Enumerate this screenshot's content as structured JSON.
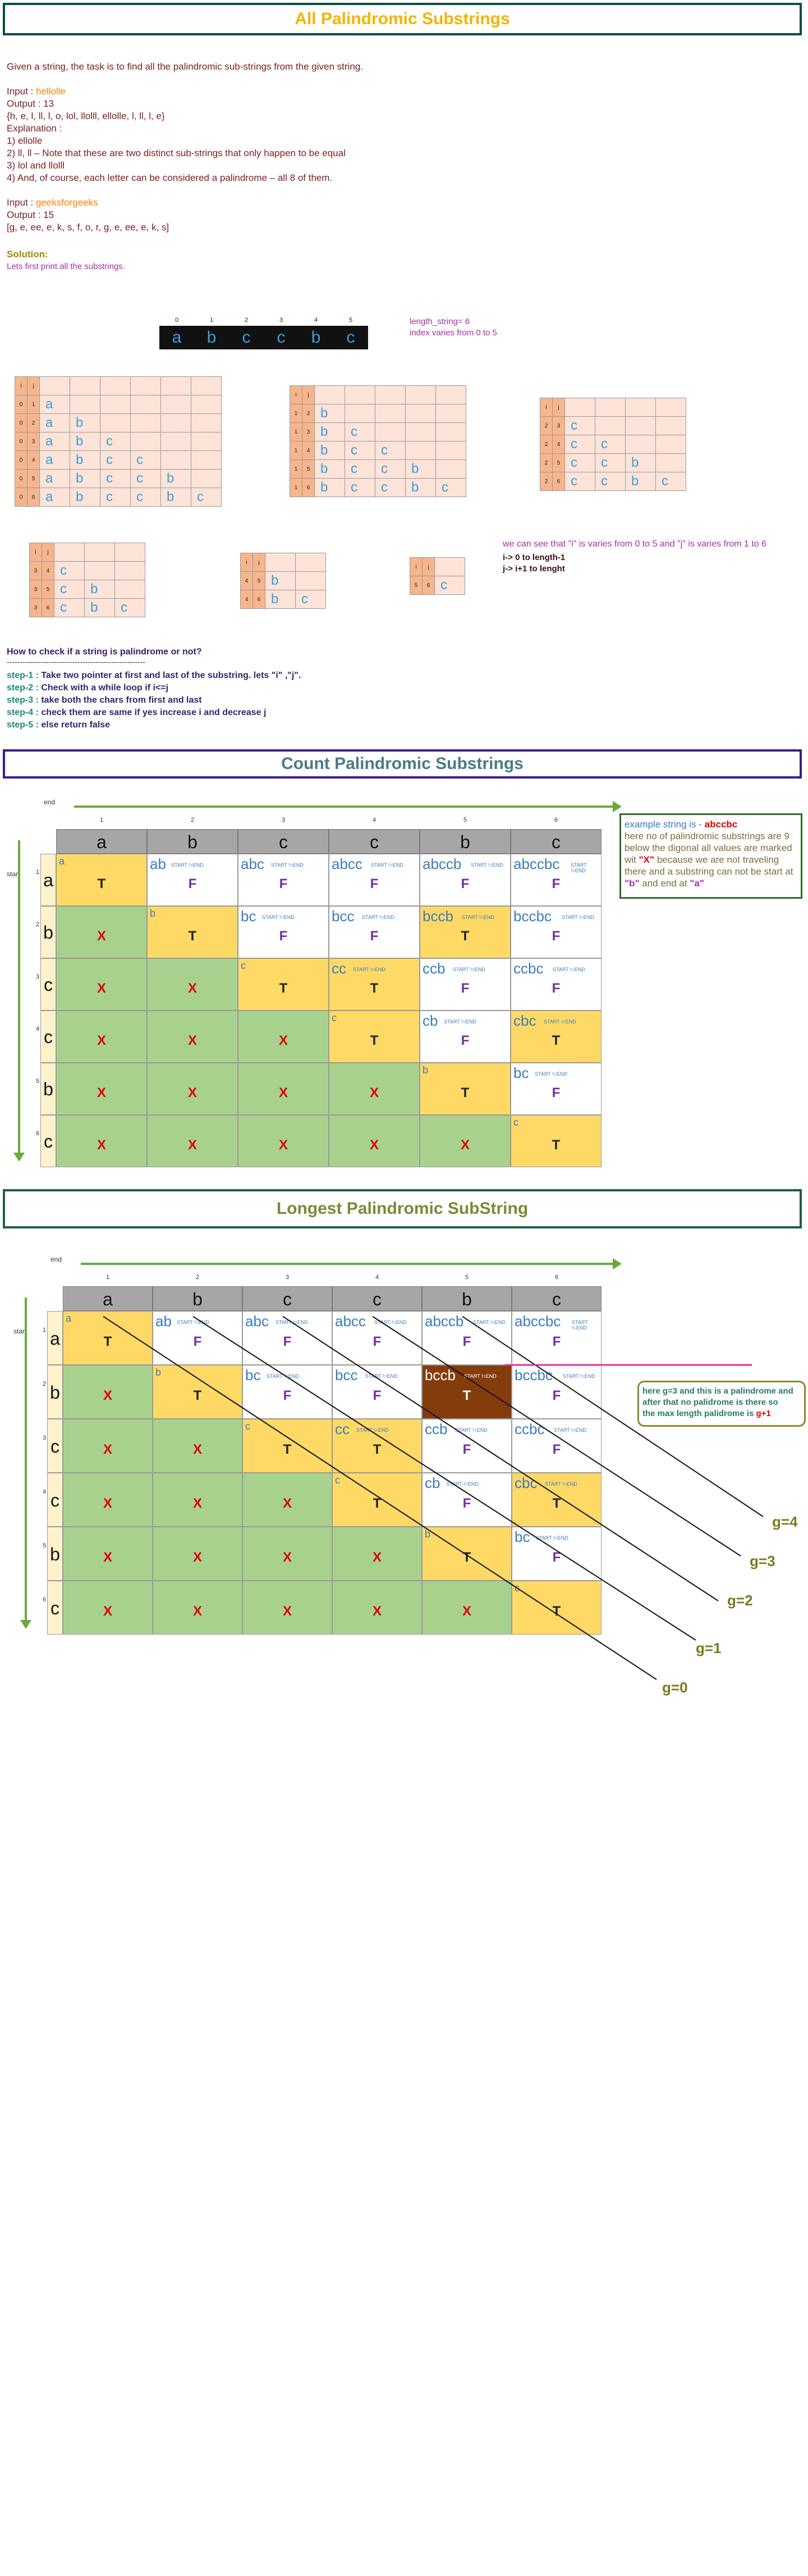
{
  "banners": {
    "all": "All Palindromic Substrings",
    "count": "Count Palindromic Substrings",
    "longest": "Longest Palindromic SubString"
  },
  "intro": {
    "desc": "Given a string, the task is to find all the palindromic sub-strings from the given string.",
    "ex1_input_label": "Input : ",
    "ex1_input_value": "hellolle",
    "ex1_output": "Output : 13",
    "ex1_list": "{h, e, l, ll, l, o, lol, llolll, ellolle, l, ll, l, e}",
    "ex1_explanation": "Explanation :",
    "ex1_e1": "1) ellolle",
    "ex1_e2": "2) ll, ll – Note that these are two distinct sub-strings that only happen to be equal",
    "ex1_e3": "3) lol and llolll",
    "ex1_e4": "4) And, of course, each letter can be considered a palindrome – all 8 of them.",
    "ex2_input_label": "Input : ",
    "ex2_input_value": "geeksforgeeks",
    "ex2_output": "Output : 15",
    "ex2_list": "[g, e, ee, e, k, s, f, o, r, g, e, ee, e, k, s]"
  },
  "solution": {
    "title": "Solution:",
    "line1": "Lets first print all the substrings.",
    "length_note": "length_string= 6",
    "index_note": "index varies from 0 to 5",
    "string_chars": [
      "a",
      "b",
      "c",
      "c",
      "b",
      "c"
    ],
    "string_idx": [
      "0",
      "1",
      "2",
      "3",
      "4",
      "5"
    ],
    "ij_note": "we can see that \"i\" is varies from 0 to 5 and \"j\" is varies from 1 to 6",
    "ij_range1": "i-> 0 to length-1",
    "ij_range2": "j-> i+1 to lenght"
  },
  "check": {
    "title": "How to check if a string is palindrome or not?",
    "dashes": "-----------------------------------------------------",
    "s1_label": "step-1 : ",
    "s1": "Take two pointer at first and last of the substring. lets \"i\" ,\"j\".",
    "s2_label": "step-2 : ",
    "s2": " Check with a while loop if i<=j",
    "s3_label": "step-3 : ",
    "s3": "take both the chars from first and last",
    "s4_label": "step-4 : ",
    "s4": "check them are same if yes increase i and decrease j",
    "s5_label": "step-5 : ",
    "s5": "else return false"
  },
  "grid_labels": {
    "end": "end",
    "start": "start",
    "start_end": "START !=END",
    "cols": [
      "a",
      "b",
      "c",
      "c",
      "b",
      "c"
    ],
    "nums": [
      "1",
      "2",
      "3",
      "4",
      "5",
      "6"
    ]
  },
  "count_note": {
    "l1_label": "example string is - ",
    "l1_value": "abccbc",
    "l2": "here no of palindromic substrings are 9",
    "l3": "below the digonal all values are marked",
    "l4_pre": "wit ",
    "l4_x": "\"X\"",
    "l4_post": " because we are not traveling",
    "l5": "there and a substring can not be start at",
    "l6_b": "\"b\"",
    "l6_mid": " and end at ",
    "l6_a": "\"a\""
  },
  "longest_note": {
    "l1": "here g=3 and this is a palindrome and",
    "l2": "after that no palidrome is there so",
    "l3_pre": "the max length palidrome is ",
    "l3_val": "g+1"
  },
  "g_labels": [
    "g=4",
    "g=3",
    "g=2",
    "g=1",
    "g=0"
  ],
  "colors": {
    "title_gold": "#f4b400",
    "accent_orange": "#ff7f00",
    "cell_yellow": "#ffd966",
    "cell_green": "#a9d18e",
    "cell_highlight": "#843c0c",
    "x_red": "#e00000",
    "f_purple": "#7030a0"
  }
}
